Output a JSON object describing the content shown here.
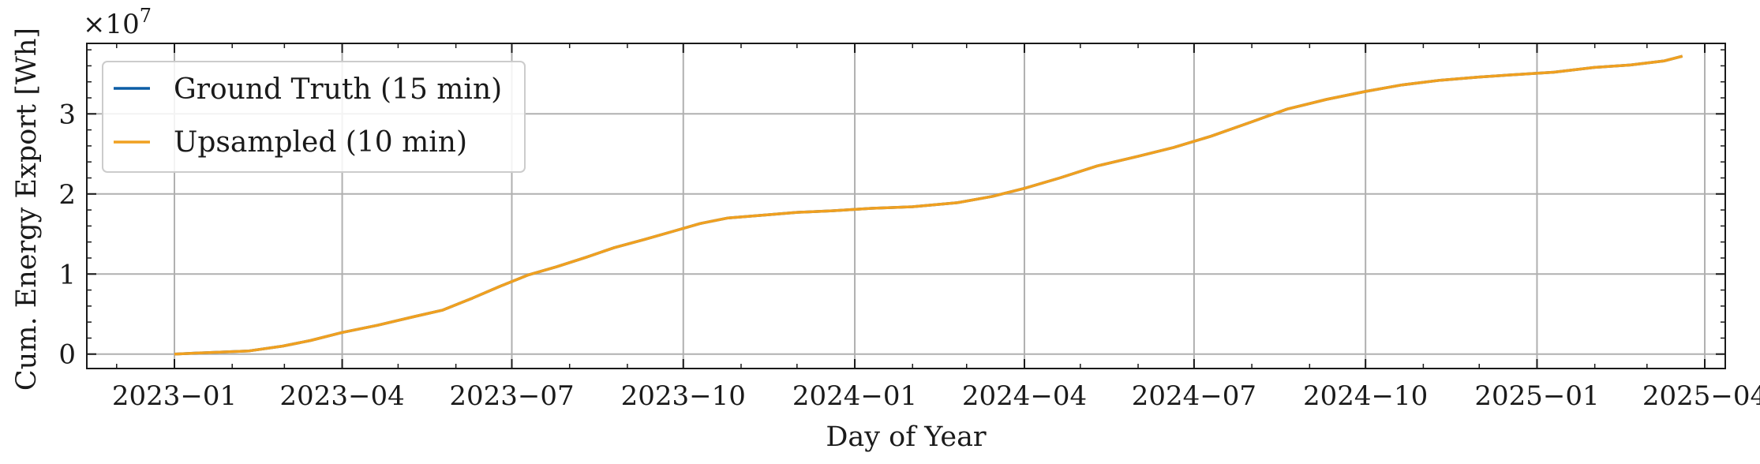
{
  "chart_data": {
    "type": "line",
    "title": "",
    "xlabel": "Day of Year",
    "ylabel": "Cum. Energy Export [Wh]",
    "y_offset_label": "×10",
    "y_offset_exponent": "7",
    "x_ticks": [
      "2023−01",
      "2023−04",
      "2023−07",
      "2023−10",
      "2024−01",
      "2024−04",
      "2024−07",
      "2024−10",
      "2025−01",
      "2025−04"
    ],
    "x_tick_dates": [
      "2023-01-01",
      "2023-04-01",
      "2023-07-01",
      "2023-10-01",
      "2024-01-01",
      "2024-04-01",
      "2024-07-01",
      "2024-10-01",
      "2025-01-01",
      "2025-04-01"
    ],
    "y_ticks": [
      "0",
      "1",
      "2",
      "3"
    ],
    "ylim": [
      -0.18,
      3.88
    ],
    "xlim": [
      "2022-11-15",
      "2025-04-12"
    ],
    "grid": true,
    "legend_position": "top-left",
    "colors": {
      "ground_truth": "#0C5DA5",
      "upsampled": "#F0A020"
    },
    "series": [
      {
        "name": "Ground Truth (15 min)",
        "color": "#0C5DA5",
        "points": [
          [
            "2023-01-01",
            0.0
          ],
          [
            "2023-01-20",
            0.02
          ],
          [
            "2023-02-10",
            0.04
          ],
          [
            "2023-02-28",
            0.1
          ],
          [
            "2023-03-15",
            0.17
          ],
          [
            "2023-04-01",
            0.27
          ],
          [
            "2023-04-20",
            0.36
          ],
          [
            "2023-05-10",
            0.47
          ],
          [
            "2023-05-25",
            0.55
          ],
          [
            "2023-06-10",
            0.7
          ],
          [
            "2023-06-25",
            0.85
          ],
          [
            "2023-07-10",
            0.99
          ],
          [
            "2023-07-25",
            1.09
          ],
          [
            "2023-08-10",
            1.21
          ],
          [
            "2023-08-25",
            1.33
          ],
          [
            "2023-09-10",
            1.43
          ],
          [
            "2023-09-25",
            1.53
          ],
          [
            "2023-10-10",
            1.63
          ],
          [
            "2023-10-25",
            1.7
          ],
          [
            "2023-11-15",
            1.74
          ],
          [
            "2023-12-01",
            1.77
          ],
          [
            "2023-12-20",
            1.79
          ],
          [
            "2024-01-10",
            1.82
          ],
          [
            "2024-02-01",
            1.84
          ],
          [
            "2024-02-25",
            1.89
          ],
          [
            "2024-03-15",
            1.97
          ],
          [
            "2024-04-01",
            2.07
          ],
          [
            "2024-04-20",
            2.2
          ],
          [
            "2024-05-10",
            2.35
          ],
          [
            "2024-06-01",
            2.47
          ],
          [
            "2024-06-20",
            2.58
          ],
          [
            "2024-07-10",
            2.72
          ],
          [
            "2024-08-01",
            2.9
          ],
          [
            "2024-08-20",
            3.06
          ],
          [
            "2024-09-10",
            3.18
          ],
          [
            "2024-10-01",
            3.28
          ],
          [
            "2024-10-20",
            3.36
          ],
          [
            "2024-11-10",
            3.42
          ],
          [
            "2024-12-01",
            3.46
          ],
          [
            "2024-12-20",
            3.49
          ],
          [
            "2025-01-10",
            3.52
          ],
          [
            "2025-02-01",
            3.58
          ],
          [
            "2025-02-20",
            3.61
          ],
          [
            "2025-03-10",
            3.66
          ],
          [
            "2025-03-20",
            3.72
          ]
        ]
      },
      {
        "name": "Upsampled (10 min)",
        "color": "#F0A020",
        "points": [
          [
            "2023-01-01",
            0.0
          ],
          [
            "2023-01-20",
            0.02
          ],
          [
            "2023-02-10",
            0.04
          ],
          [
            "2023-02-28",
            0.1
          ],
          [
            "2023-03-15",
            0.17
          ],
          [
            "2023-04-01",
            0.27
          ],
          [
            "2023-04-20",
            0.36
          ],
          [
            "2023-05-10",
            0.47
          ],
          [
            "2023-05-25",
            0.55
          ],
          [
            "2023-06-10",
            0.7
          ],
          [
            "2023-06-25",
            0.85
          ],
          [
            "2023-07-10",
            0.99
          ],
          [
            "2023-07-25",
            1.09
          ],
          [
            "2023-08-10",
            1.21
          ],
          [
            "2023-08-25",
            1.33
          ],
          [
            "2023-09-10",
            1.43
          ],
          [
            "2023-09-25",
            1.53
          ],
          [
            "2023-10-10",
            1.63
          ],
          [
            "2023-10-25",
            1.7
          ],
          [
            "2023-11-15",
            1.74
          ],
          [
            "2023-12-01",
            1.77
          ],
          [
            "2023-12-20",
            1.79
          ],
          [
            "2024-01-10",
            1.82
          ],
          [
            "2024-02-01",
            1.84
          ],
          [
            "2024-02-25",
            1.89
          ],
          [
            "2024-03-15",
            1.97
          ],
          [
            "2024-04-01",
            2.07
          ],
          [
            "2024-04-20",
            2.2
          ],
          [
            "2024-05-10",
            2.35
          ],
          [
            "2024-06-01",
            2.47
          ],
          [
            "2024-06-20",
            2.58
          ],
          [
            "2024-07-10",
            2.72
          ],
          [
            "2024-08-01",
            2.9
          ],
          [
            "2024-08-20",
            3.06
          ],
          [
            "2024-09-10",
            3.18
          ],
          [
            "2024-10-01",
            3.28
          ],
          [
            "2024-10-20",
            3.36
          ],
          [
            "2024-11-10",
            3.42
          ],
          [
            "2024-12-01",
            3.46
          ],
          [
            "2024-12-20",
            3.49
          ],
          [
            "2025-01-10",
            3.52
          ],
          [
            "2025-02-01",
            3.58
          ],
          [
            "2025-02-20",
            3.61
          ],
          [
            "2025-03-10",
            3.66
          ],
          [
            "2025-03-20",
            3.72
          ]
        ]
      }
    ]
  }
}
